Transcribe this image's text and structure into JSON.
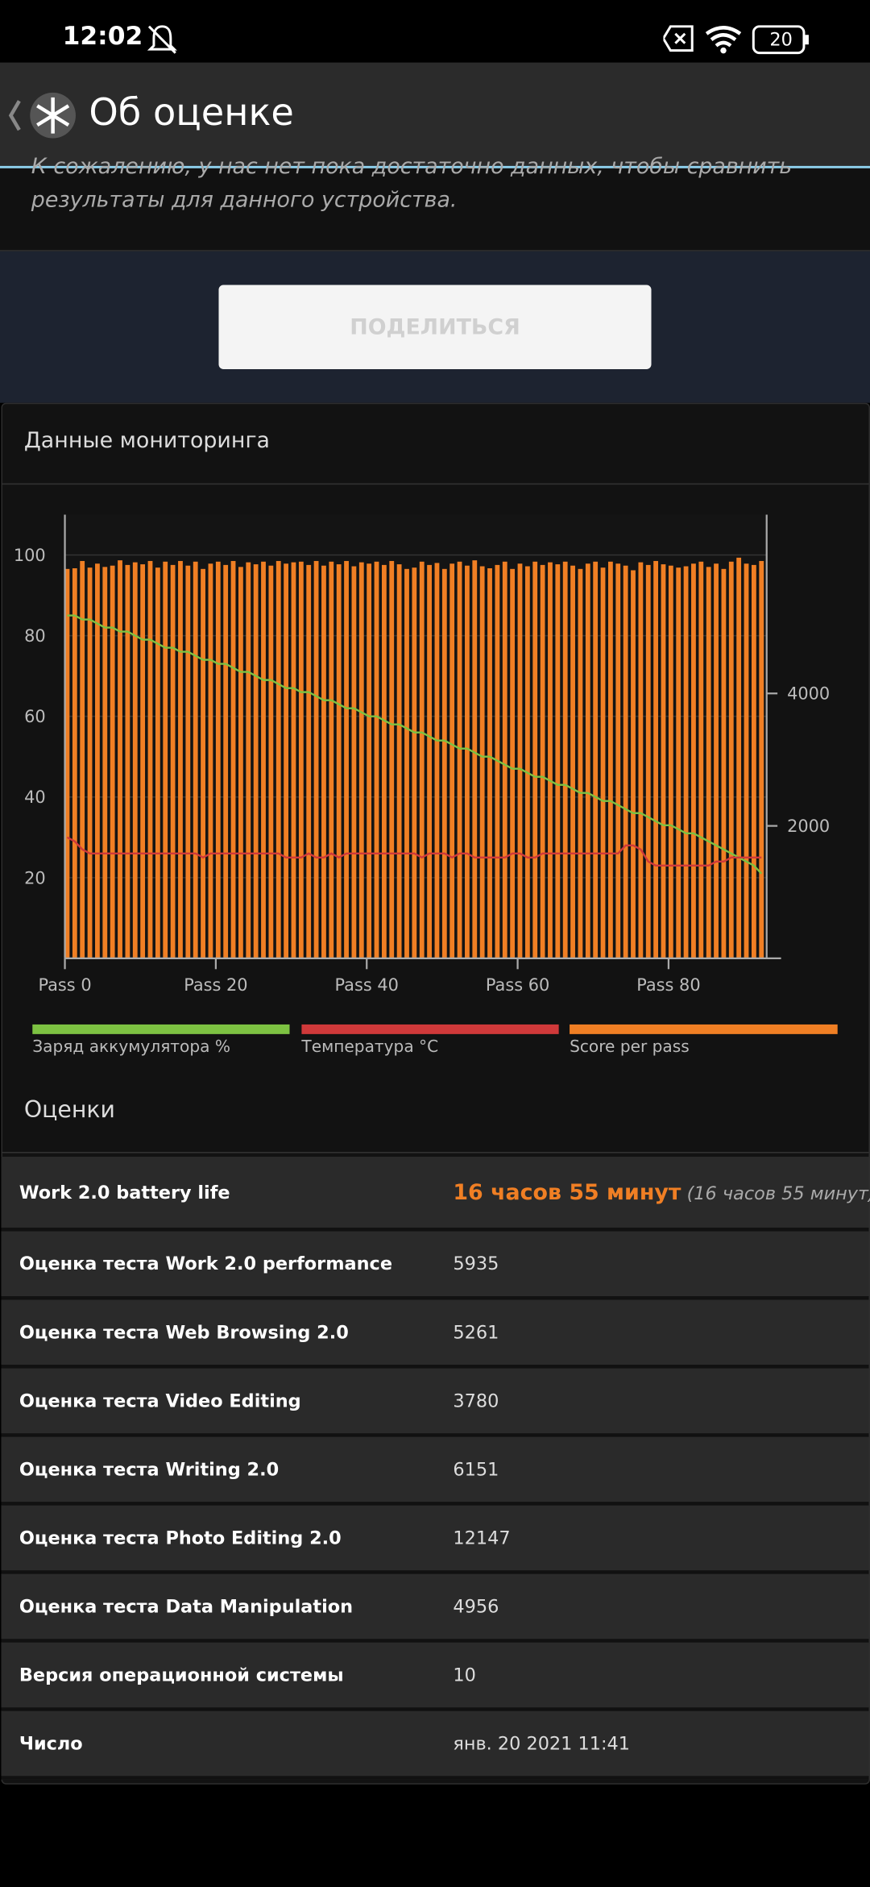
{
  "status_bar": {
    "time": "12:02",
    "battery": "20"
  },
  "header": {
    "title": "Об оценке"
  },
  "notice": {
    "line1": "К сожалению, у нас нет пока достаточно данных, чтобы сравнить",
    "line2": "результаты для данного устройства."
  },
  "button": {
    "label": "ПОДЕЛИТЬСЯ"
  },
  "monitoring": {
    "title": "Данные мониторинга"
  },
  "chart_data": {
    "type": "combo",
    "x": [
      0,
      1,
      2,
      3,
      4,
      5,
      6,
      7,
      8,
      9,
      10,
      11,
      12,
      13,
      14,
      15,
      16,
      17,
      18,
      19,
      20,
      21,
      22,
      23,
      24,
      25,
      26,
      27,
      28,
      29,
      30,
      31,
      32,
      33,
      34,
      35,
      36,
      37,
      38,
      39,
      40,
      41,
      42,
      43,
      44,
      45,
      46,
      47,
      48,
      49,
      50,
      51,
      52,
      53,
      54,
      55,
      56,
      57,
      58,
      59,
      60,
      61,
      62,
      63,
      64,
      65,
      66,
      67,
      68,
      69,
      70,
      71,
      72,
      73,
      74,
      75,
      76,
      77,
      78,
      79,
      80,
      81,
      82,
      83,
      84,
      85,
      86,
      87,
      88,
      89,
      90,
      91,
      92
    ],
    "xlim": [
      0,
      93
    ],
    "xticks": [
      {
        "value": 0,
        "label": "Pass 0"
      },
      {
        "value": 20,
        "label": "Pass 20"
      },
      {
        "value": 40,
        "label": "Pass 40"
      },
      {
        "value": 60,
        "label": "Pass 60"
      },
      {
        "value": 80,
        "label": "Pass 80"
      }
    ],
    "ylim": [
      0,
      110
    ],
    "yticks": [
      20,
      40,
      60,
      80,
      100
    ],
    "y2lim": [
      0,
      6700
    ],
    "y2ticks": [
      2000,
      4000
    ],
    "grid": true,
    "series": [
      {
        "name": "Заряд аккумулятора %",
        "type": "line",
        "axis": "y",
        "color": "#7dc242",
        "values": [
          85,
          85,
          84,
          84,
          83,
          82,
          82,
          81,
          81,
          80,
          79,
          79,
          78,
          77,
          77,
          76,
          76,
          75,
          74,
          74,
          73,
          73,
          72,
          71,
          71,
          70,
          69,
          69,
          68,
          67,
          67,
          66,
          66,
          65,
          64,
          64,
          63,
          62,
          62,
          61,
          60,
          60,
          59,
          58,
          58,
          57,
          56,
          56,
          55,
          54,
          54,
          53,
          52,
          52,
          51,
          50,
          50,
          49,
          48,
          47,
          47,
          46,
          45,
          45,
          44,
          43,
          43,
          42,
          41,
          41,
          40,
          39,
          39,
          38,
          37,
          36,
          36,
          35,
          34,
          33,
          33,
          32,
          31,
          31,
          30,
          29,
          28,
          27,
          26,
          25,
          24,
          23,
          21
        ]
      },
      {
        "name": "Температура °C",
        "type": "line",
        "axis": "y",
        "color": "#d0393a",
        "values": [
          30,
          29,
          27,
          26,
          26,
          26,
          26,
          26,
          26,
          26,
          26,
          26,
          26,
          26,
          26,
          26,
          26,
          26,
          25,
          26,
          26,
          26,
          26,
          26,
          26,
          26,
          26,
          26,
          26,
          25,
          25,
          25,
          26,
          25,
          25,
          26,
          25,
          26,
          26,
          26,
          26,
          26,
          26,
          26,
          26,
          26,
          26,
          25,
          26,
          26,
          26,
          25,
          26,
          26,
          25,
          25,
          25,
          25,
          25,
          26,
          26,
          25,
          25,
          26,
          26,
          26,
          26,
          26,
          26,
          26,
          26,
          26,
          26,
          26,
          28,
          28,
          27,
          24,
          23,
          23,
          23,
          23,
          23,
          23,
          23,
          23,
          24,
          24,
          25,
          25,
          25,
          25,
          25
        ]
      },
      {
        "name": "Score per pass",
        "type": "bar",
        "axis": "y2",
        "color": "#f07f24",
        "values": [
          5880,
          5890,
          6000,
          5900,
          5960,
          5910,
          5930,
          6010,
          5940,
          5980,
          5950,
          6000,
          5900,
          5990,
          5940,
          6000,
          5930,
          5990,
          5880,
          5960,
          5990,
          5940,
          6000,
          5910,
          5980,
          5950,
          5990,
          5930,
          6000,
          5960,
          5980,
          5990,
          5940,
          6000,
          5930,
          5990,
          5950,
          6000,
          5920,
          5980,
          5960,
          5990,
          5940,
          6000,
          5950,
          5880,
          5900,
          5990,
          5940,
          5970,
          5880,
          5960,
          5990,
          5930,
          6010,
          5920,
          5890,
          5940,
          5990,
          5880,
          5960,
          5920,
          5990,
          5940,
          5980,
          5950,
          5990,
          5930,
          5880,
          5960,
          5990,
          5900,
          5990,
          5960,
          5930,
          5860,
          5980,
          5940,
          6000,
          5950,
          5930,
          5900,
          5920,
          5960,
          5990,
          5910,
          5960,
          5880,
          5990,
          6050,
          5960,
          5940,
          6000
        ]
      }
    ]
  },
  "scores": {
    "title": "Оценки",
    "rows": [
      {
        "label": "Work 2.0 battery life",
        "value": "16 часов 55 минут",
        "detail": "(16 часов 55 минут)"
      },
      {
        "label": "Оценка теста Work 2.0 performance",
        "value": 5935
      },
      {
        "label": "Оценка теста Web Browsing 2.0",
        "value": 5261
      },
      {
        "label": "Оценка теста Video Editing",
        "value": 3780
      },
      {
        "label": "Оценка теста Writing 2.0",
        "value": 6151
      },
      {
        "label": "Оценка теста Photo Editing 2.0",
        "value": 12147
      },
      {
        "label": "Оценка теста Data Manipulation",
        "value": 4956
      },
      {
        "label": "Версия операционной системы",
        "value": 10
      },
      {
        "label": "Число",
        "value": "янв. 20 2021 11:41"
      }
    ]
  }
}
